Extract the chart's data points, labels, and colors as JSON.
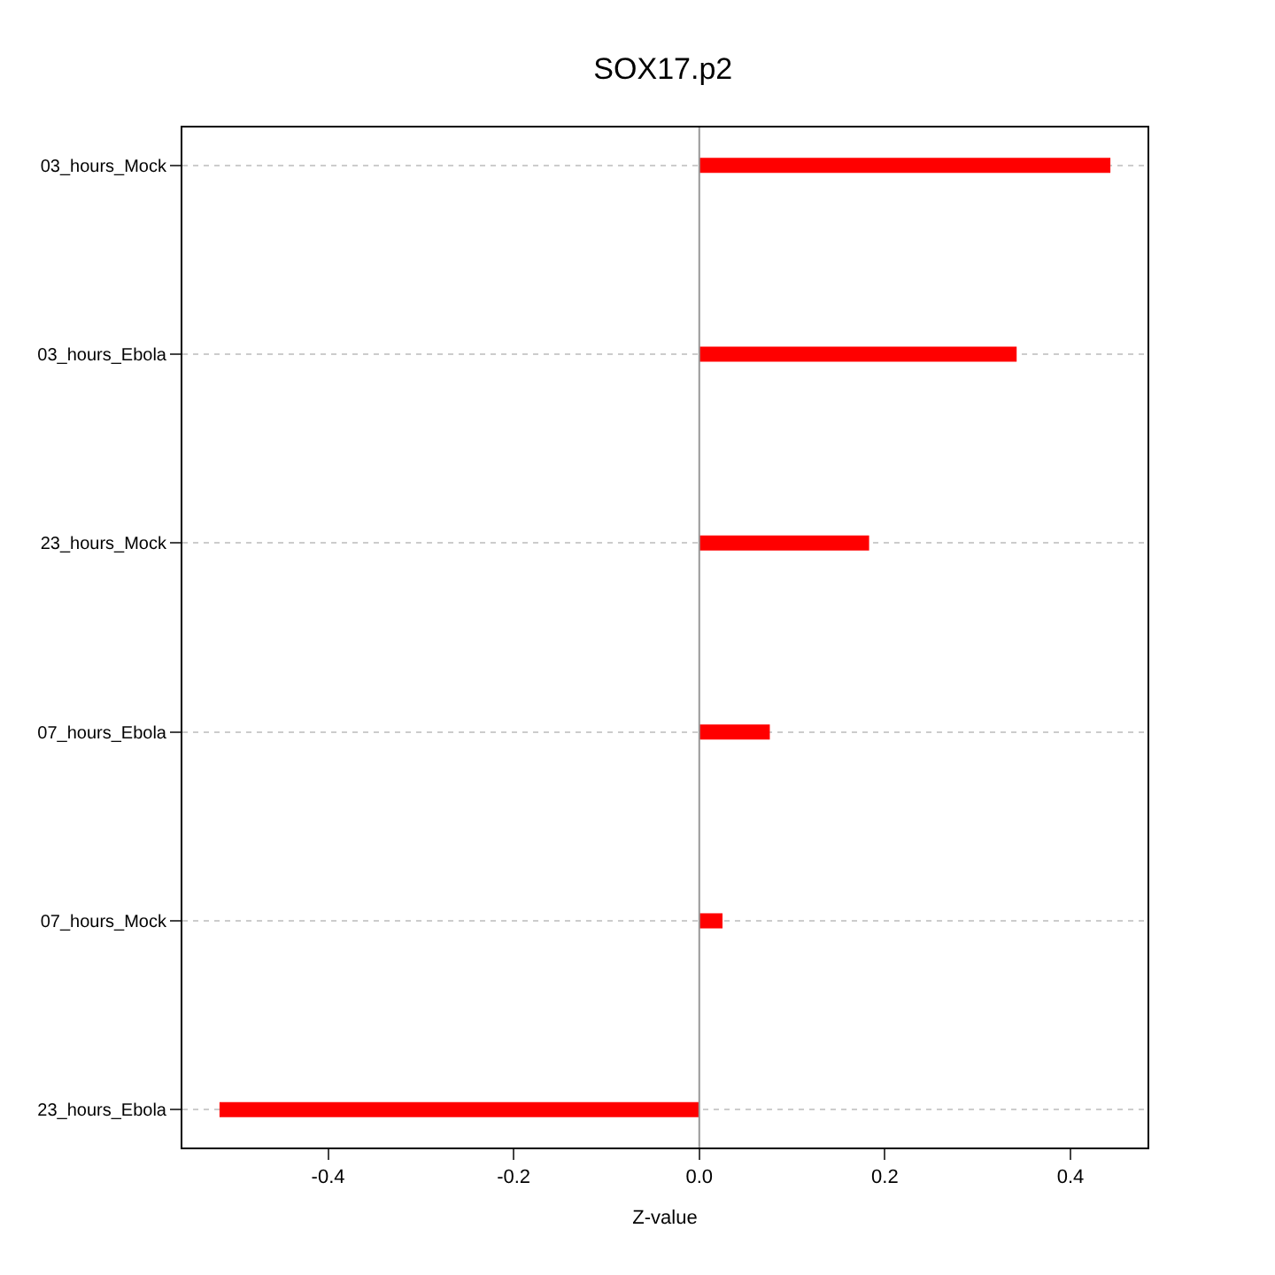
{
  "chart_data": {
    "type": "bar",
    "title": "SOX17.p2",
    "xlabel": "Z-value",
    "orientation": "horizontal",
    "categories": [
      "03_hours_Mock",
      "03_hours_Ebola",
      "23_hours_Mock",
      "07_hours_Ebola",
      "07_hours_Mock",
      "23_hours_Ebola"
    ],
    "values": [
      0.443,
      0.342,
      0.183,
      0.076,
      0.025,
      -0.517
    ],
    "color": "#ff0000",
    "xlim": [
      -0.557,
      0.483
    ],
    "xticks": [
      -0.4,
      -0.2,
      {
        "value": 0,
        "label": "0.0"
      },
      0.2,
      0.4
    ],
    "grid": "y",
    "ref_lines": [
      {
        "axis": "x",
        "value": 0,
        "color": "#999999"
      }
    ]
  }
}
